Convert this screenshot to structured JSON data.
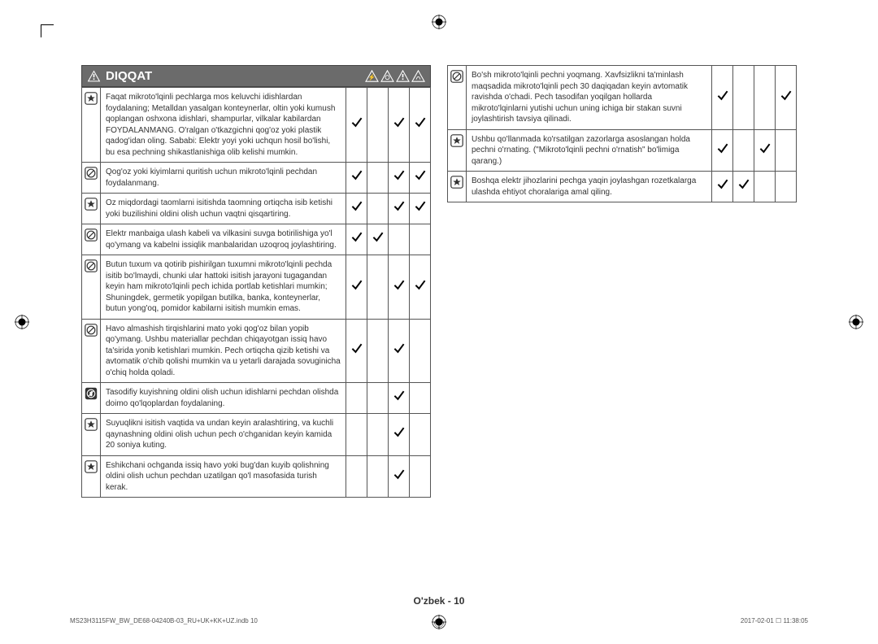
{
  "header": {
    "title": "DIQQAT"
  },
  "left_rows": [
    {
      "icon": "star",
      "text": "Faqat mikroto'lqinli pechlarga mos keluvchi idishlardan foydalaning; Metalldan yasalgan konteynerlar, oltin yoki kumush qoplangan oshxona idishlari, shampurlar, vilkalar kabilardan FOYDALANMANG.\nO'ralgan o'tkazgichni qog'oz yoki plastik qadog'idan oling.\nSababi: Elektr yoyi yoki uchqun hosil bo'lishi, bu esa pechning shikastlanishiga olib kelishi mumkin.",
      "checks": [
        true,
        false,
        true,
        true
      ]
    },
    {
      "icon": "prohibit",
      "text": "Qog'oz yoki kiyimlarni quritish uchun mikroto'lqinli pechdan foydalanmang.",
      "checks": [
        true,
        false,
        true,
        true
      ]
    },
    {
      "icon": "star",
      "text": "Oz miqdordagi taomlarni isitishda taomning ortiqcha isib ketishi yoki buzilishini oldini olish uchun vaqtni qisqartiring.",
      "checks": [
        true,
        false,
        true,
        true
      ]
    },
    {
      "icon": "prohibit",
      "text": "Elektr manbaiga ulash kabeli va vilkasini suvga botirilishiga yo'l qo'ymang va kabelni issiqlik manbalaridan uzoqroq joylashtiring.",
      "checks": [
        true,
        true,
        false,
        false
      ]
    },
    {
      "icon": "prohibit",
      "text": "Butun tuxum va qotirib pishirilgan tuxumni mikroto'lqinli pechda isitib bo'lmaydi, chunki ular hattoki isitish jarayoni tugagandan keyin ham mikroto'lqinli pech ichida portlab ketishlari mumkin; Shuningdek, germetik yopilgan butilka, banka, konteynerlar, butun yong'oq, pomidor kabilarni isitish mumkin emas.",
      "checks": [
        true,
        false,
        true,
        true
      ]
    },
    {
      "icon": "prohibit",
      "text": "Havo almashish tirqishlarini mato yoki qog'oz bilan yopib qo'ymang. Ushbu materiallar pechdan chiqayotgan issiq havo ta'sirida yonib ketishlari mumkin. Pech ortiqcha qizib ketishi va avtomatik o'chib qolishi mumkin va u yetarli darajada sovuginicha o'chiq holda qoladi.",
      "checks": [
        true,
        false,
        true,
        false
      ]
    },
    {
      "icon": "notouch",
      "text": "Tasodifiy kuyishning oldini olish uchun idishlarni pechdan olishda doimo qo'lqoplardan foydalaning.",
      "checks": [
        false,
        false,
        true,
        false
      ]
    },
    {
      "icon": "star",
      "text": "Suyuqlikni isitish vaqtida va undan keyin aralashtiring, va kuchli qaynashning oldini olish uchun pech o'chganidan keyin kamida 20 soniya kuting.",
      "checks": [
        false,
        false,
        true,
        false
      ]
    },
    {
      "icon": "star",
      "text": "Eshikchani ochganda issiq havo yoki bug'dan kuyib qolishning oldini olish uchun pechdan uzatilgan qo'l masofasida turish kerak.",
      "checks": [
        false,
        false,
        true,
        false
      ]
    }
  ],
  "right_rows": [
    {
      "icon": "prohibit",
      "text": "Bo'sh mikroto'lqinli pechni yoqmang. Xavfsizlikni ta'minlash maqsadida mikroto'lqinli pech 30 daqiqadan keyin avtomatik ravishda o'chadi. Pech tasodifan yoqilgan hollarda mikroto'lqinlarni yutishi uchun uning ichiga bir stakan suvni joylashtirish tavsiya qilinadi.",
      "checks": [
        true,
        false,
        false,
        true
      ]
    },
    {
      "icon": "star",
      "text": "Ushbu qo'llanmada ko'rsatilgan zazorlarga asoslangan holda pechni o'rnating. (\"Mikroto'lqinli pechni o'rnatish\" bo'limiga qarang.)",
      "checks": [
        true,
        false,
        true,
        false
      ]
    },
    {
      "icon": "star",
      "text": "Boshqa elektr jihozlarini pechga yaqin joylashgan rozetkalarga ulashda ehtiyot choralariga amal qiling.",
      "checks": [
        true,
        true,
        false,
        false
      ]
    }
  ],
  "footer": {
    "center": "O'zbek - 10",
    "left": "MS23H3115FW_BW_DE68-04240B-03_RU+UK+KK+UZ.indb   10",
    "right": "2017-02-01   ☐ 11:38:05"
  },
  "colors": {
    "header_bg": "#6b6b6b",
    "border": "#555555",
    "text": "#333333",
    "check": "#000000"
  }
}
